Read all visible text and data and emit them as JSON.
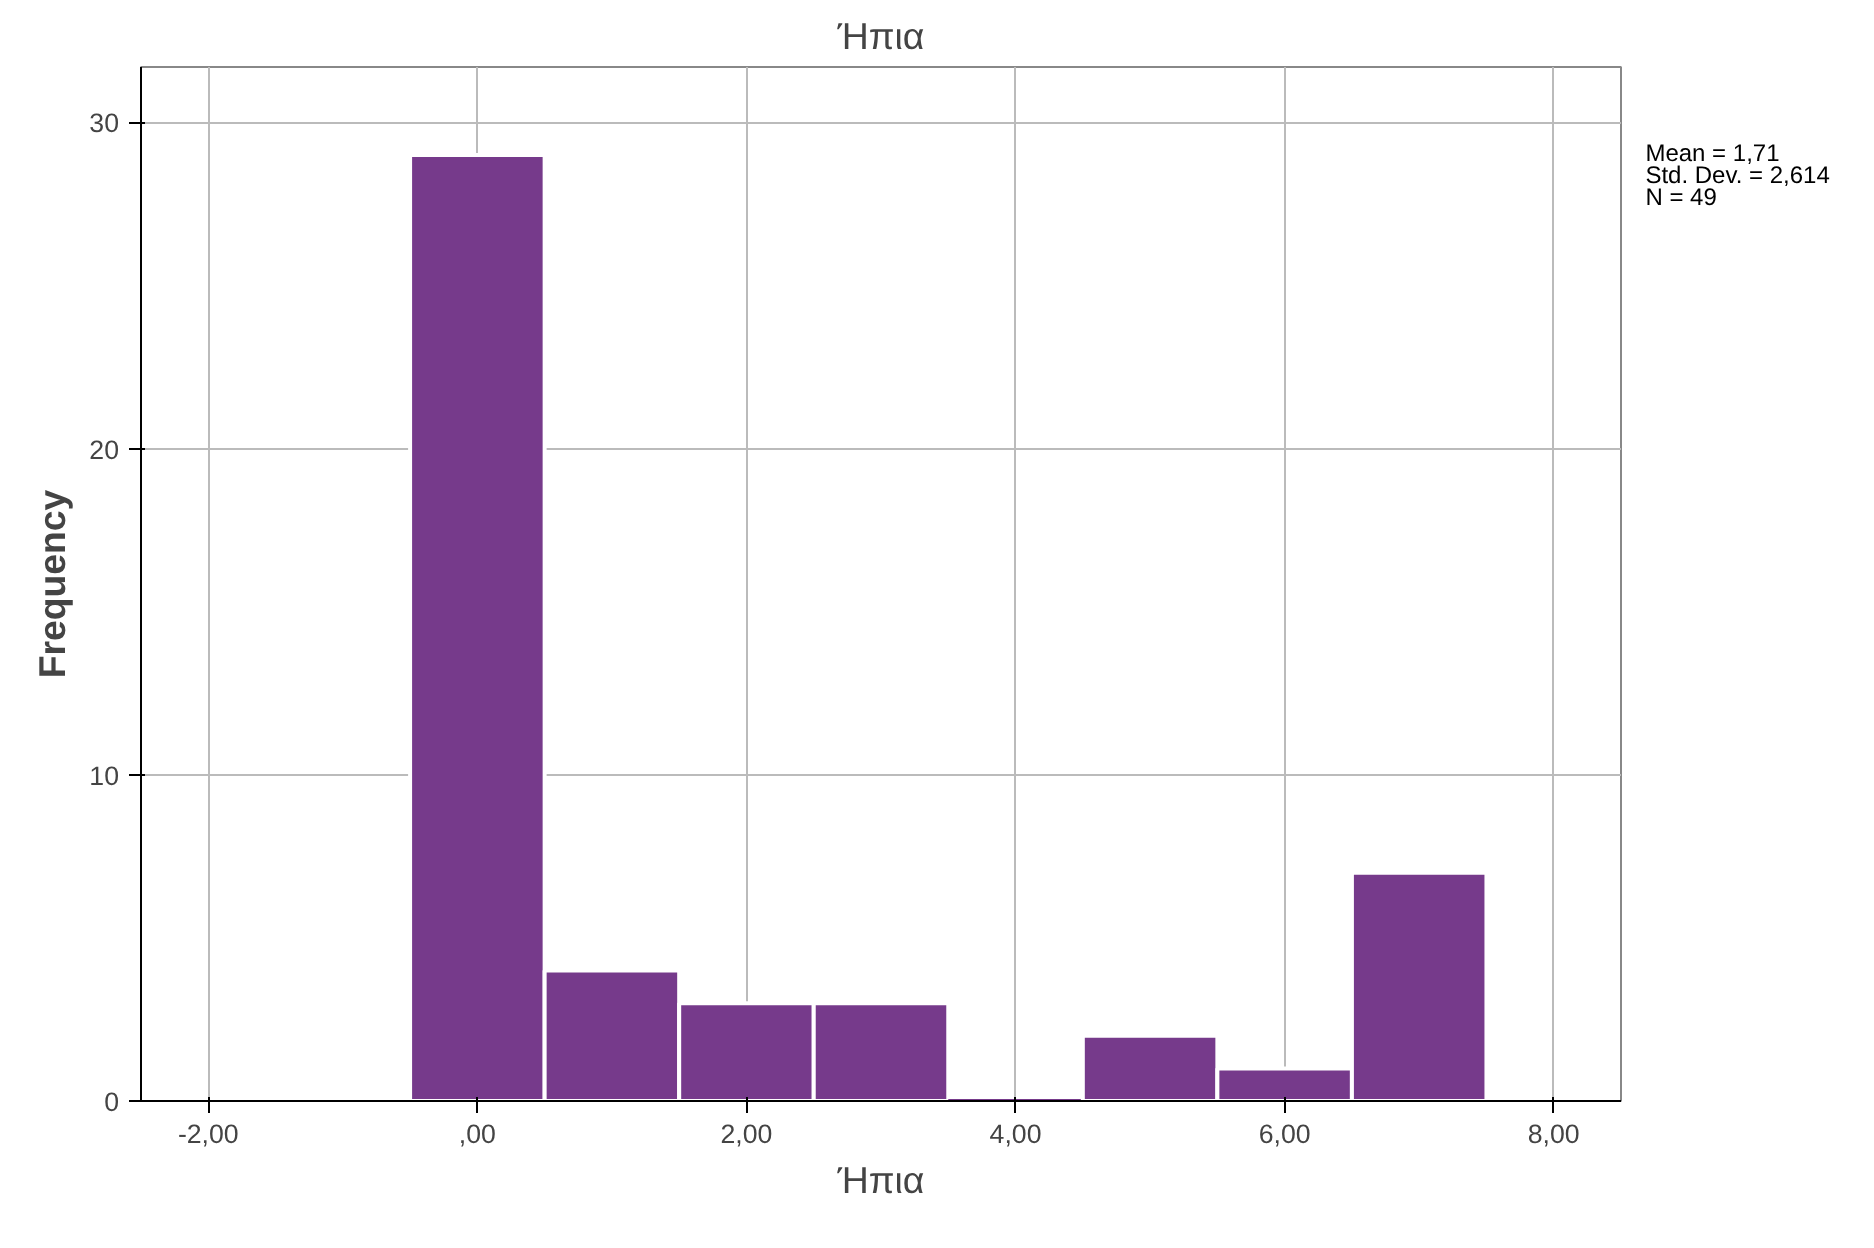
{
  "chart_data": {
    "type": "histogram",
    "title": "Ήπια",
    "xlabel": "Ήπια",
    "ylabel": "Frequency",
    "bins": [
      -0.5,
      0.5,
      1.5,
      2.5,
      3.5,
      4.5,
      5.5,
      6.5,
      7.5
    ],
    "values": [
      29,
      4,
      3,
      3,
      0,
      2,
      1,
      7
    ],
    "color": "#763a8b",
    "xlim": [
      -2.5,
      8.5
    ],
    "ylim": [
      0,
      31.7
    ],
    "xticks": [
      {
        "value": -2,
        "label": "-2,00"
      },
      {
        "value": 0,
        "label": ",00"
      },
      {
        "value": 2,
        "label": "2,00"
      },
      {
        "value": 4,
        "label": "4,00"
      },
      {
        "value": 6,
        "label": "6,00"
      },
      {
        "value": 8,
        "label": "8,00"
      }
    ],
    "yticks": [
      0,
      10,
      20,
      30
    ],
    "grid": true,
    "annotations": [
      "Mean = 1,71",
      "Std. Dev. = 2,614",
      "N = 49"
    ]
  }
}
